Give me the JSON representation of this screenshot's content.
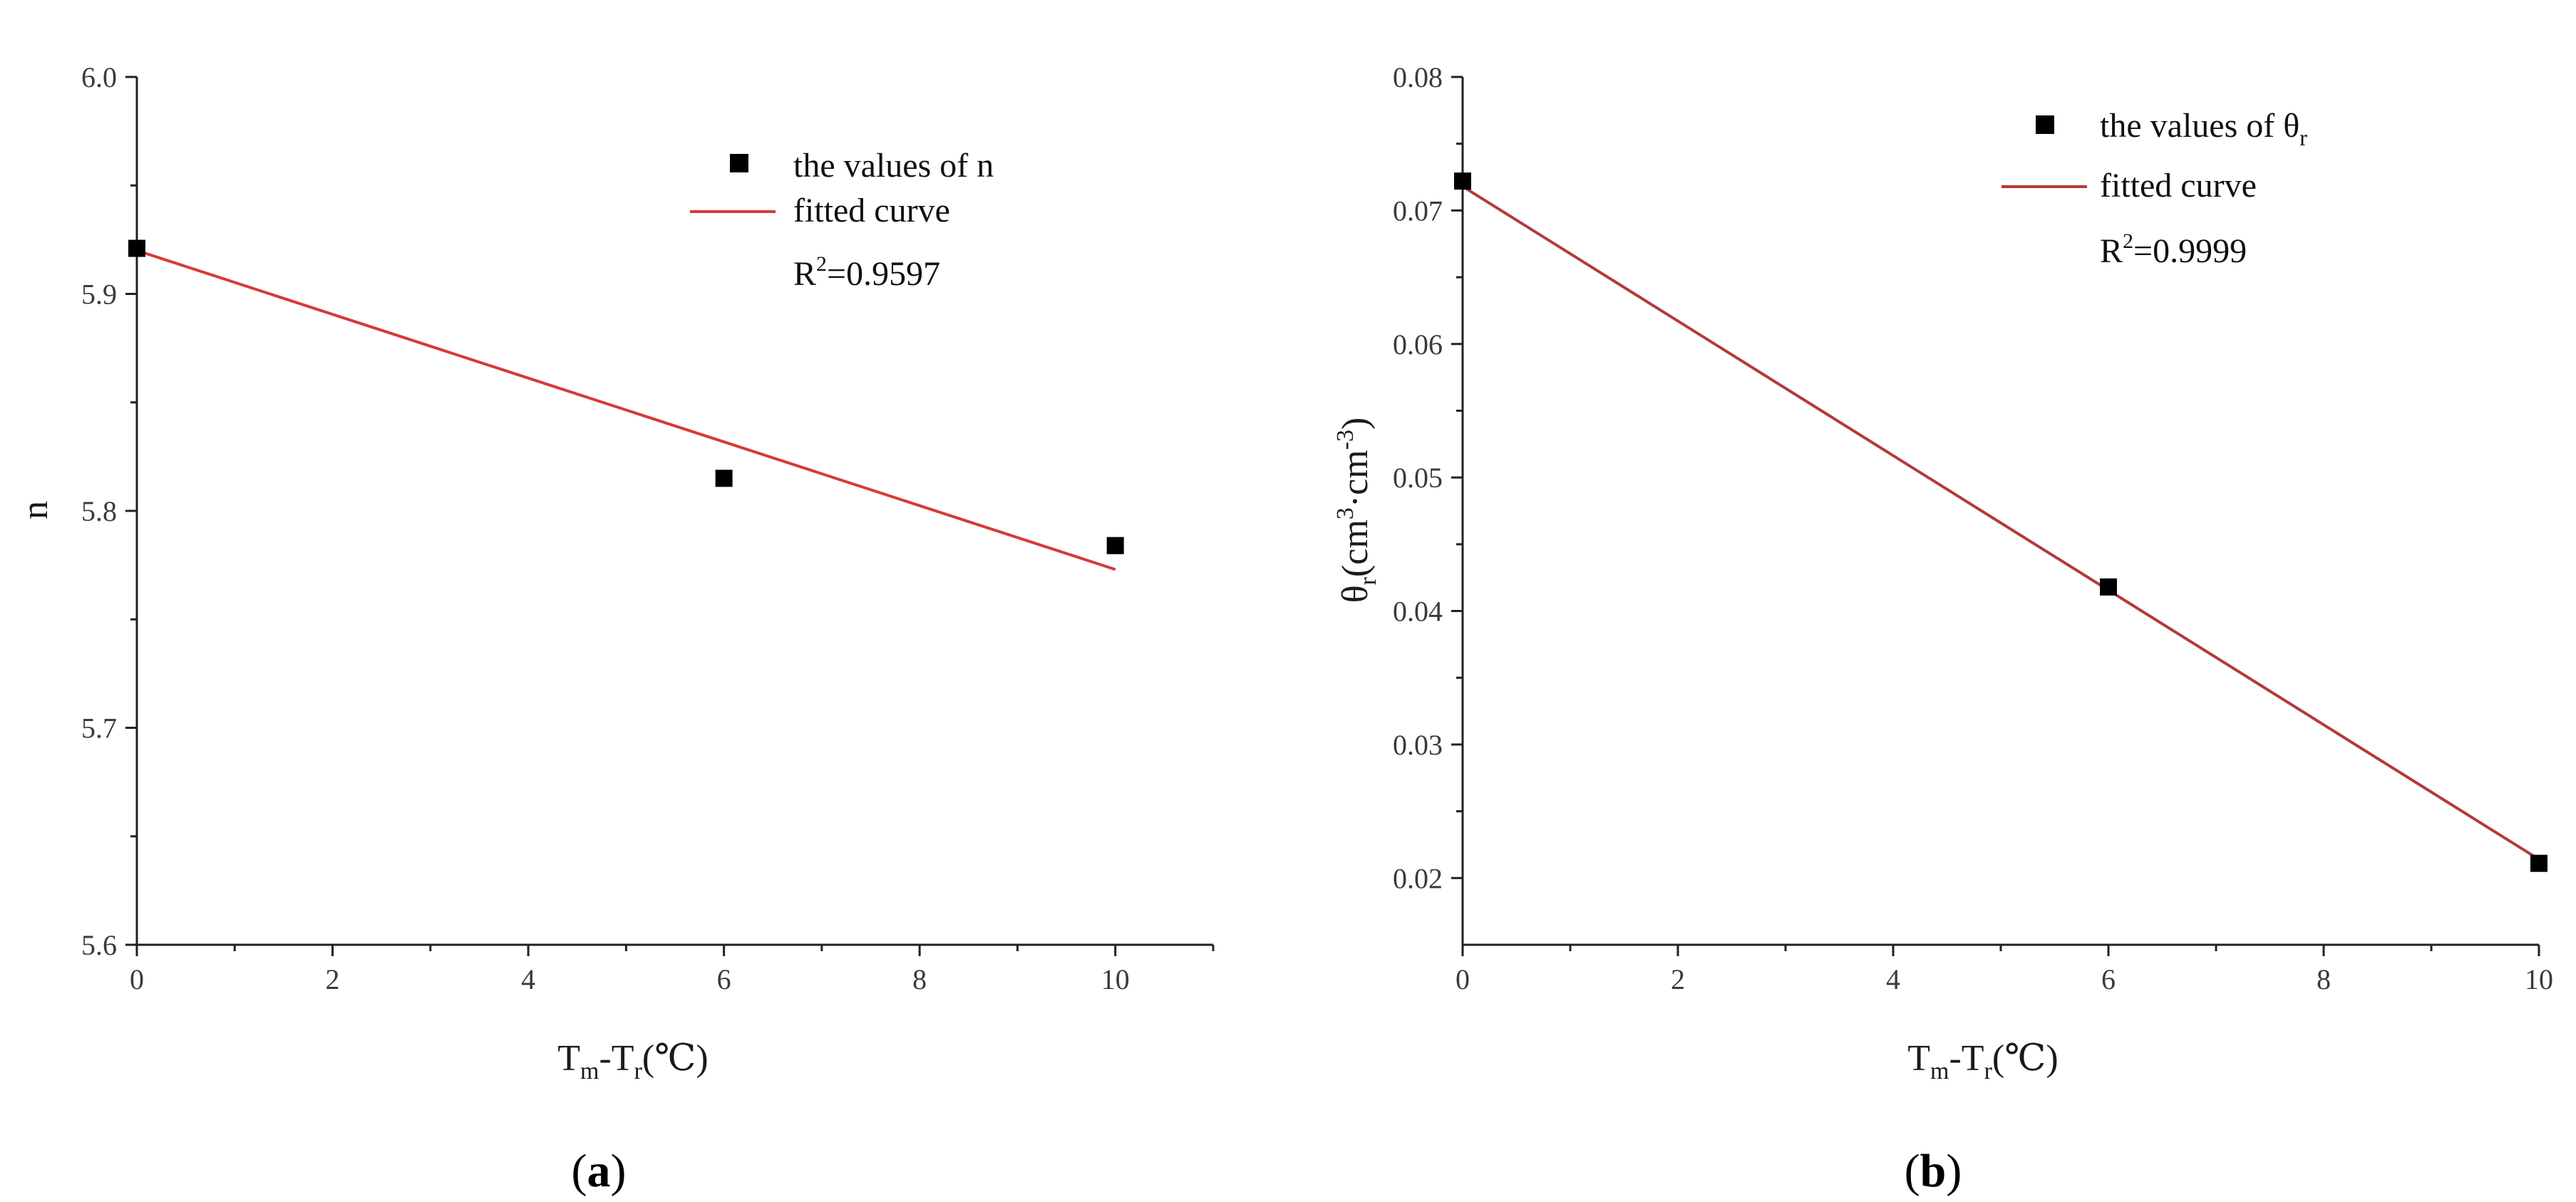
{
  "chart_data": [
    {
      "id": "a",
      "type": "scatter",
      "caption_open": "(",
      "caption_letter": "a",
      "caption_close": ")",
      "xlabel": {
        "main": "T",
        "sub1": "m",
        "mid": "-T",
        "sub2": "r",
        "tail": "(℃)"
      },
      "ylabel": "n",
      "xlim": [
        0,
        11
      ],
      "ylim": [
        5.6,
        6.0
      ],
      "x_ticks": [
        "0",
        "2",
        "4",
        "6",
        "8",
        "10"
      ],
      "x_tick_values": [
        0,
        2,
        4,
        6,
        8,
        10
      ],
      "x_minor_values": [
        1,
        3,
        5,
        7,
        9,
        11
      ],
      "y_ticks": [
        "5.6",
        "5.7",
        "5.8",
        "5.9",
        "6.0"
      ],
      "y_tick_values": [
        5.6,
        5.7,
        5.8,
        5.9,
        6.0
      ],
      "series": [
        {
          "name": "the values of n",
          "kind": "points",
          "x": [
            0,
            6,
            10
          ],
          "y": [
            5.921,
            5.815,
            5.784
          ]
        },
        {
          "name": "fitted curve",
          "kind": "line",
          "x": [
            0,
            10
          ],
          "y": [
            5.92,
            5.773
          ]
        }
      ],
      "legend": {
        "points_label": "the values of n",
        "line_label": "fitted curve",
        "r2_prefix": "R",
        "r2_sup": "2",
        "r2_value": "=0.9597"
      },
      "colors": {
        "points": "#000000",
        "line": "#d63a3a",
        "axis": "#222222"
      }
    },
    {
      "id": "b",
      "type": "scatter",
      "caption_open": "(",
      "caption_letter": "b",
      "caption_close": ")",
      "xlabel": {
        "main": "T",
        "sub1": "m",
        "mid": "-T",
        "sub2": "r",
        "tail": "(℃)"
      },
      "ylabel": {
        "theta": "θ",
        "sub": "r",
        "unit_open": "(cm",
        "sup1": "3",
        "mid": "·cm",
        "sup2": "-3",
        "unit_close": ")"
      },
      "xlim": [
        0,
        10
      ],
      "ylim": [
        0.015,
        0.08
      ],
      "x_ticks": [
        "0",
        "2",
        "4",
        "6",
        "8",
        "10"
      ],
      "x_tick_values": [
        0,
        2,
        4,
        6,
        8,
        10
      ],
      "x_minor_values": [
        1,
        3,
        5,
        7,
        9
      ],
      "y_ticks": [
        "0.02",
        "0.03",
        "0.04",
        "0.05",
        "0.06",
        "0.07",
        "0.08"
      ],
      "y_tick_values": [
        0.02,
        0.03,
        0.04,
        0.05,
        0.06,
        0.07,
        0.08
      ],
      "series": [
        {
          "name": "the values of θr",
          "kind": "points",
          "x": [
            0,
            6,
            10
          ],
          "y": [
            0.0722,
            0.0418,
            0.0211
          ]
        },
        {
          "name": "fitted curve",
          "kind": "line",
          "x": [
            0,
            10
          ],
          "y": [
            0.0718,
            0.0214
          ]
        }
      ],
      "legend": {
        "points_label": "the values of θ",
        "points_label_sub": "r",
        "line_label": "fitted curve",
        "r2_prefix": "R",
        "r2_sup": "2",
        "r2_value": "=0.9999"
      },
      "colors": {
        "points": "#000000",
        "line": "#b43a3a",
        "axis": "#222222"
      }
    }
  ]
}
